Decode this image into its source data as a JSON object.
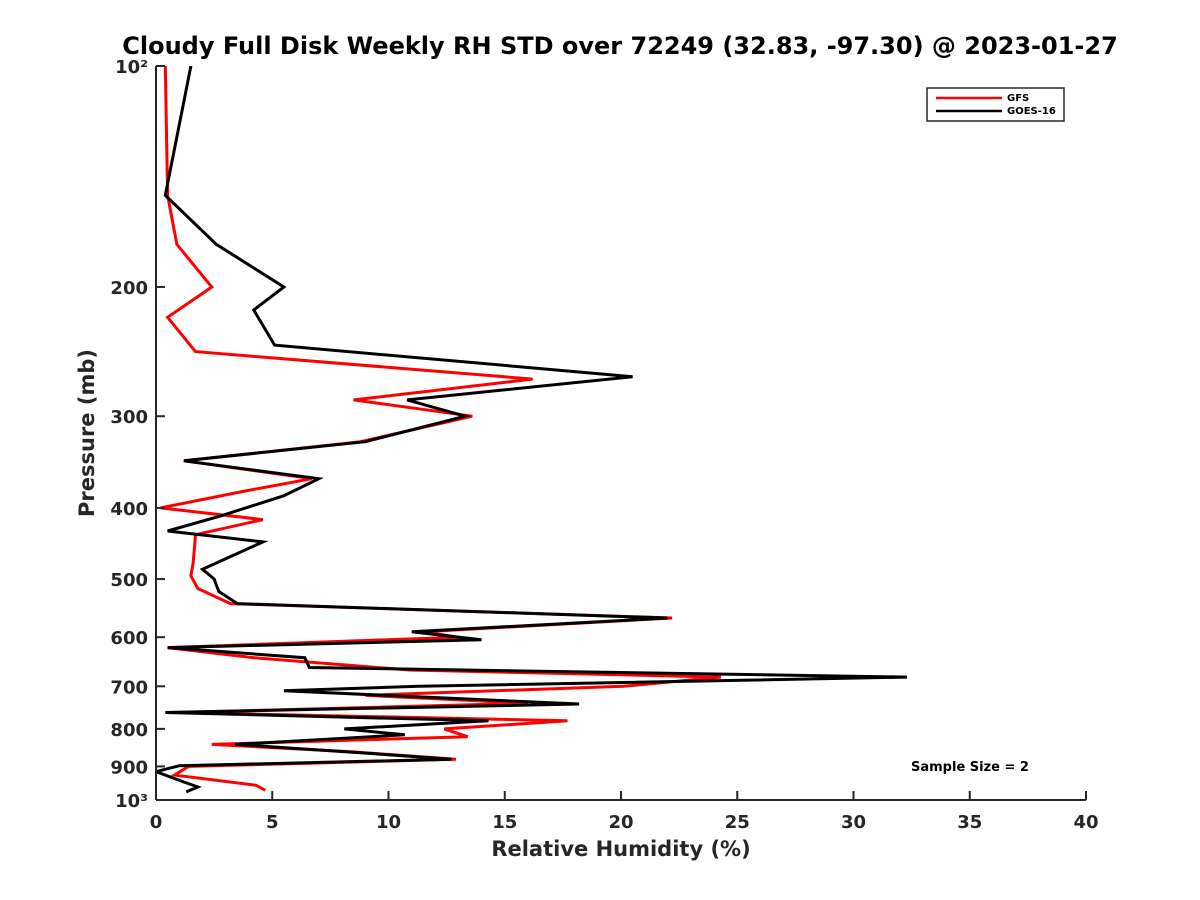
{
  "chart_data": {
    "type": "line",
    "title": "Cloudy Full Disk Weekly RH STD over 72249 (32.83, -97.30) @ 2023-01-27",
    "xlabel": "Relative Humidity (%)",
    "ylabel": "Pressure (mb)",
    "xlim": [
      0,
      40
    ],
    "ylim": [
      100,
      1000
    ],
    "y_scale": "log",
    "y_reversed": true,
    "x_ticks": [
      0,
      5,
      10,
      15,
      20,
      25,
      30,
      35,
      40
    ],
    "x_tick_labels": [
      "0",
      "5",
      "10",
      "15",
      "20",
      "25",
      "30",
      "35",
      "40"
    ],
    "y_ticks": [
      100,
      200,
      300,
      400,
      500,
      600,
      700,
      800,
      900,
      1000
    ],
    "y_tick_labels": [
      "10²",
      "200",
      "300",
      "400",
      "500",
      "600",
      "700",
      "800",
      "900",
      "10³"
    ],
    "grid": false,
    "legend_position": "top-right",
    "annotation": "Sample Size = 2",
    "series": [
      {
        "name": "GFS",
        "color": "#ff0000",
        "points": [
          [
            0.4,
            100
          ],
          [
            0.5,
            150
          ],
          [
            0.9,
            175
          ],
          [
            2.4,
            200
          ],
          [
            0.5,
            220
          ],
          [
            1.7,
            245
          ],
          [
            16.2,
            267
          ],
          [
            8.5,
            285
          ],
          [
            13.6,
            300
          ],
          [
            8.8,
            325
          ],
          [
            1.2,
            345
          ],
          [
            6.7,
            365
          ],
          [
            3.7,
            380
          ],
          [
            0.2,
            400
          ],
          [
            4.6,
            415
          ],
          [
            1.7,
            435
          ],
          [
            1.6,
            475
          ],
          [
            1.5,
            495
          ],
          [
            1.8,
            515
          ],
          [
            3.2,
            540
          ],
          [
            22.2,
            565
          ],
          [
            11.5,
            590
          ],
          [
            13.0,
            600
          ],
          [
            0.5,
            620
          ],
          [
            4.2,
            640
          ],
          [
            10.9,
            665
          ],
          [
            24.3,
            680
          ],
          [
            20.1,
            700
          ],
          [
            9.0,
            720
          ],
          [
            16.0,
            738
          ],
          [
            1.0,
            760
          ],
          [
            17.7,
            780
          ],
          [
            12.4,
            800
          ],
          [
            13.4,
            820
          ],
          [
            2.4,
            840
          ],
          [
            8.5,
            860
          ],
          [
            12.9,
            880
          ],
          [
            1.4,
            900
          ],
          [
            0.8,
            925
          ],
          [
            4.3,
            955
          ],
          [
            4.7,
            970
          ]
        ]
      },
      {
        "name": "GOES-16",
        "color": "#000000",
        "points": [
          [
            1.5,
            100
          ],
          [
            0.4,
            150
          ],
          [
            2.6,
            175
          ],
          [
            5.5,
            200
          ],
          [
            4.2,
            215
          ],
          [
            5.1,
            240
          ],
          [
            20.5,
            265
          ],
          [
            10.8,
            285
          ],
          [
            13.3,
            300
          ],
          [
            9.0,
            325
          ],
          [
            1.2,
            345
          ],
          [
            7.0,
            365
          ],
          [
            5.5,
            385
          ],
          [
            2.8,
            410
          ],
          [
            0.5,
            430
          ],
          [
            4.6,
            445
          ],
          [
            2.0,
            485
          ],
          [
            2.5,
            500
          ],
          [
            2.7,
            520
          ],
          [
            3.5,
            540
          ],
          [
            22.0,
            565
          ],
          [
            11.0,
            590
          ],
          [
            14.0,
            605
          ],
          [
            0.5,
            620
          ],
          [
            6.4,
            640
          ],
          [
            6.6,
            660
          ],
          [
            32.3,
            680
          ],
          [
            11.3,
            700
          ],
          [
            5.5,
            710
          ],
          [
            18.2,
            740
          ],
          [
            0.4,
            760
          ],
          [
            14.3,
            780
          ],
          [
            8.1,
            800
          ],
          [
            10.7,
            815
          ],
          [
            3.4,
            840
          ],
          [
            9.4,
            865
          ],
          [
            12.7,
            880
          ],
          [
            1.0,
            898
          ],
          [
            0.0,
            915
          ],
          [
            1.2,
            945
          ],
          [
            1.8,
            960
          ],
          [
            1.3,
            975
          ]
        ]
      }
    ]
  }
}
